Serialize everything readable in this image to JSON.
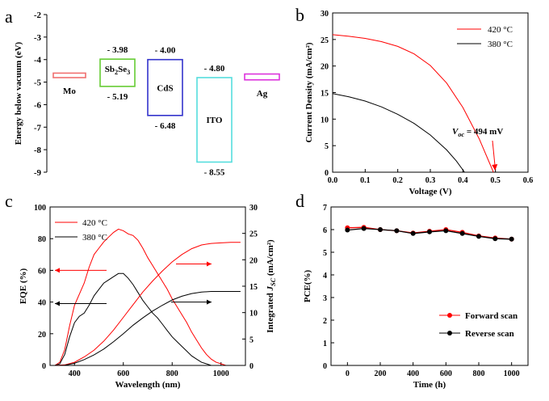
{
  "panels": {
    "a": "a",
    "b": "b",
    "c": "c",
    "d": "d"
  },
  "chart_data": [
    {
      "id": "a",
      "type": "other",
      "ylabel": "Energy below vacuum (eV)",
      "yticks": [
        -2,
        -3,
        -4,
        -5,
        -6,
        -7,
        -8,
        -9
      ],
      "ylim": [
        -2,
        -9
      ],
      "layers": [
        {
          "name": "Mo",
          "top": -4.6,
          "bottom": -4.8,
          "color": "#f07070",
          "top_label": "",
          "bottom_label": ""
        },
        {
          "name": "Sb2Se3",
          "top": -3.98,
          "bottom": -5.19,
          "color": "#66cc33",
          "top_label": "- 3.98",
          "bottom_label": "- 5.19"
        },
        {
          "name": "CdS",
          "top": -4.0,
          "bottom": -6.48,
          "color": "#3333cc",
          "top_label": "- 4.00",
          "bottom_label": "- 6.48"
        },
        {
          "name": "ITO",
          "top": -4.8,
          "bottom": -8.55,
          "color": "#55dddd",
          "top_label": "- 4.80",
          "bottom_label": "- 8.55"
        },
        {
          "name": "Ag",
          "top": -4.64,
          "bottom": -4.9,
          "color": "#dd33dd",
          "top_label": "",
          "bottom_label": ""
        }
      ]
    },
    {
      "id": "b",
      "type": "line",
      "xlabel": "Voltage (V)",
      "ylabel": "Current Density (mA/cm²)",
      "xlim": [
        0.0,
        0.6
      ],
      "ylim": [
        0,
        30
      ],
      "xticks": [
        "0.0",
        "0.1",
        "0.2",
        "0.3",
        "0.4",
        "0.5",
        "0.6"
      ],
      "yticks": [
        "0",
        "5",
        "10",
        "15",
        "20",
        "25",
        "30"
      ],
      "legend": "top-right",
      "annotation": {
        "text": "= 494 mV",
        "symbol": "V",
        "sub": "oc",
        "x": 0.494,
        "color": "#ff0000"
      },
      "series": [
        {
          "name": "420 °C",
          "color": "#ff0000",
          "x": [
            0.0,
            0.05,
            0.1,
            0.15,
            0.2,
            0.25,
            0.3,
            0.35,
            0.4,
            0.45,
            0.494
          ],
          "y": [
            25.9,
            25.6,
            25.2,
            24.6,
            23.7,
            22.3,
            20.1,
            16.8,
            12.2,
            6.3,
            0.0
          ]
        },
        {
          "name": "380 °C",
          "color": "#000000",
          "x": [
            0.0,
            0.05,
            0.1,
            0.15,
            0.2,
            0.25,
            0.3,
            0.35,
            0.38,
            0.405
          ],
          "y": [
            14.8,
            14.2,
            13.4,
            12.3,
            10.9,
            9.2,
            7.0,
            4.2,
            2.1,
            0.0
          ]
        }
      ]
    },
    {
      "id": "c",
      "type": "line",
      "xlabel": "Wavelength (nm)",
      "ylabel": "EQE (%)",
      "y2label": "Integrated J",
      "y2label_sub": "SC",
      "y2label_tail": " (mA/cm²)",
      "xlim": [
        300,
        1100
      ],
      "ylim": [
        0,
        100
      ],
      "y2lim": [
        0,
        30
      ],
      "xticks": [
        "400",
        "600",
        "800",
        "1000"
      ],
      "yticks": [
        "0",
        "20",
        "40",
        "60",
        "80",
        "100"
      ],
      "y2ticks": [
        "0",
        "5",
        "10",
        "15",
        "20",
        "25",
        "30"
      ],
      "legend": "top-left",
      "series": [
        {
          "name": "420 °C",
          "axis": "left",
          "color": "#ff0000",
          "x": [
            320,
            340,
            360,
            380,
            400,
            420,
            440,
            460,
            480,
            500,
            520,
            540,
            560,
            580,
            600,
            620,
            640,
            660,
            680,
            700,
            720,
            740,
            760,
            780,
            800,
            820,
            840,
            860,
            880,
            900,
            920,
            940,
            960,
            980,
            1000,
            1020,
            1040,
            1060,
            1080
          ],
          "y": [
            0,
            2,
            10,
            25,
            38,
            45,
            52,
            62,
            70,
            74,
            78,
            81,
            84,
            86,
            85,
            83,
            82,
            79,
            74,
            68,
            63,
            58,
            53,
            48,
            42,
            37,
            32,
            27,
            21,
            16,
            11,
            7,
            4,
            2,
            1,
            0,
            0,
            0,
            0
          ]
        },
        {
          "name": "380 °C",
          "axis": "left",
          "color": "#000000",
          "x": [
            320,
            340,
            360,
            380,
            400,
            420,
            440,
            460,
            480,
            500,
            520,
            540,
            560,
            580,
            600,
            620,
            640,
            660,
            680,
            700,
            720,
            740,
            760,
            780,
            800,
            820,
            840,
            860,
            880,
            900,
            920,
            940,
            960,
            980,
            1000,
            1020,
            1040,
            1060,
            1080
          ],
          "y": [
            0,
            1,
            7,
            18,
            27,
            31,
            33,
            38,
            44,
            48,
            52,
            54,
            56,
            58,
            58,
            55,
            51,
            46,
            41,
            37,
            33,
            30,
            26,
            22,
            18,
            15,
            12,
            9,
            6,
            4,
            2,
            1,
            0,
            0,
            0,
            0,
            0,
            0,
            0
          ]
        },
        {
          "name": "420 °C integrated",
          "axis": "right",
          "color": "#ff0000",
          "x": [
            320,
            360,
            400,
            440,
            480,
            520,
            560,
            600,
            640,
            680,
            720,
            760,
            800,
            840,
            880,
            920,
            960,
            1000,
            1040,
            1080
          ],
          "y": [
            0,
            0.1,
            0.6,
            1.6,
            2.9,
            4.6,
            6.7,
            9.1,
            11.5,
            13.9,
            16.0,
            17.9,
            19.6,
            21.0,
            22.1,
            22.8,
            23.1,
            23.2,
            23.3,
            23.3
          ]
        },
        {
          "name": "380 °C integrated",
          "axis": "right",
          "color": "#000000",
          "x": [
            320,
            360,
            400,
            440,
            480,
            520,
            560,
            600,
            640,
            680,
            720,
            760,
            800,
            840,
            880,
            920,
            960,
            1000,
            1040,
            1080
          ],
          "y": [
            0,
            0.05,
            0.4,
            1.1,
            2.0,
            3.1,
            4.5,
            6.0,
            7.6,
            9.0,
            10.3,
            11.4,
            12.4,
            13.1,
            13.6,
            13.9,
            14.0,
            14.0,
            14.0,
            14.0
          ]
        }
      ]
    },
    {
      "id": "d",
      "type": "line",
      "xlabel": "Time (h)",
      "ylabel": "PCE(%)",
      "xlim": [
        -100,
        1100
      ],
      "ylim": [
        0,
        7
      ],
      "xticks": [
        "0",
        "200",
        "400",
        "600",
        "800",
        "1000"
      ],
      "yticks": [
        "0",
        "1",
        "2",
        "3",
        "4",
        "5",
        "6",
        "7"
      ],
      "legend": "bottom-right",
      "series": [
        {
          "name": "Forward scan",
          "color": "#ff0000",
          "x": [
            0,
            100,
            200,
            300,
            400,
            500,
            600,
            700,
            800,
            900,
            1000
          ],
          "y": [
            6.08,
            6.1,
            6.0,
            5.95,
            5.85,
            5.93,
            6.0,
            5.88,
            5.72,
            5.63,
            5.58
          ]
        },
        {
          "name": "Reverse scan",
          "color": "#000000",
          "x": [
            0,
            100,
            200,
            300,
            400,
            500,
            600,
            700,
            800,
            900,
            1000
          ],
          "y": [
            5.98,
            6.05,
            6.0,
            5.95,
            5.83,
            5.9,
            5.95,
            5.83,
            5.7,
            5.6,
            5.58
          ]
        }
      ]
    }
  ]
}
